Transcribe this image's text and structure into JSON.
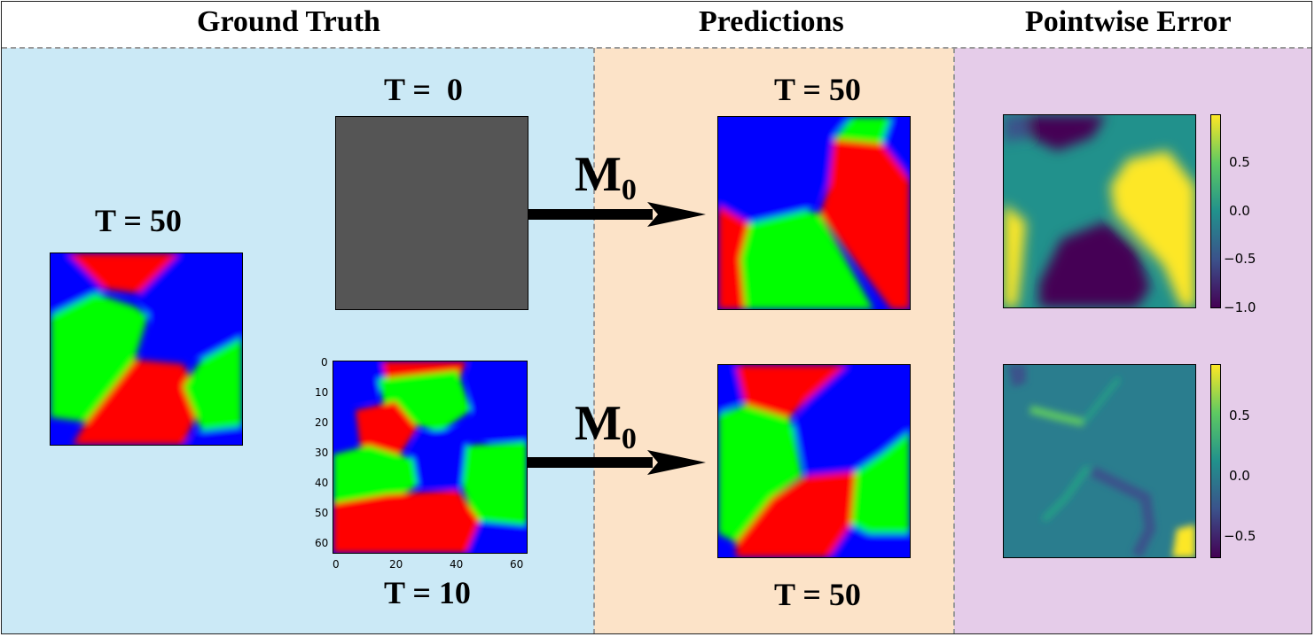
{
  "headers": {
    "ground_truth": "Ground Truth",
    "predictions": "Predictions",
    "pointwise_error": "Pointwise Error"
  },
  "labels": {
    "gt_left": "T = 50",
    "gt_top": "T =  0",
    "gt_bottom": "T = 10",
    "pred_top": "T = 50",
    "pred_bottom": "T = 50",
    "operator": "M",
    "operator_sub": "0"
  },
  "axes": {
    "y_ticks": [
      "0",
      "10",
      "20",
      "30",
      "40",
      "50",
      "60"
    ],
    "x_ticks": [
      "0",
      "20",
      "40",
      "60"
    ]
  },
  "colorbars": {
    "top_ticks": [
      "0.5",
      "0.0",
      "−0.5",
      "−1.0"
    ],
    "bottom_ticks": [
      "0.5",
      "0.0",
      "−0.5"
    ]
  },
  "colors": {
    "red": "#ff0000",
    "green": "#00ff00",
    "blue": "#0000ff",
    "initial_gray": "#555555",
    "panel_ground_truth": "#cbe9f6",
    "panel_predictions": "#fce3c8",
    "panel_error": "#e5cce9"
  }
}
